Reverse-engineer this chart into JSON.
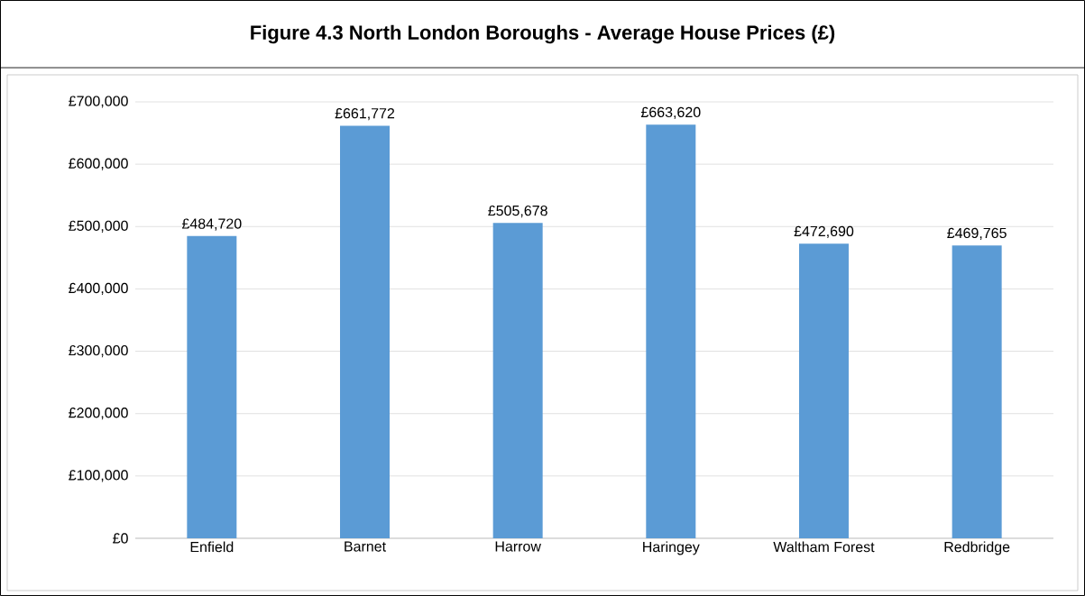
{
  "chart_data": {
    "type": "bar",
    "title": "Figure 4.3  North London Boroughs - Average House Prices (£)",
    "categories": [
      "Enfield",
      "Barnet",
      "Harrow",
      "Haringey",
      "Waltham Forest",
      "Redbridge"
    ],
    "values": [
      484720,
      661772,
      505678,
      663620,
      472690,
      469765
    ],
    "value_labels": [
      "£484,720",
      "£661,772",
      "£505,678",
      "£663,620",
      "£472,690",
      "£469,765"
    ],
    "color": "#5b9bd5",
    "ylim": [
      0,
      700000
    ],
    "yticks": [
      {
        "value": 0,
        "label": "£0"
      },
      {
        "value": 100000,
        "label": "£100,000"
      },
      {
        "value": 200000,
        "label": "£200,000"
      },
      {
        "value": 300000,
        "label": "£300,000"
      },
      {
        "value": 400000,
        "label": "£400,000"
      },
      {
        "value": 500000,
        "label": "£500,000"
      },
      {
        "value": 600000,
        "label": "£600,000"
      },
      {
        "value": 700000,
        "label": "£700,000"
      }
    ],
    "grid": "y"
  }
}
